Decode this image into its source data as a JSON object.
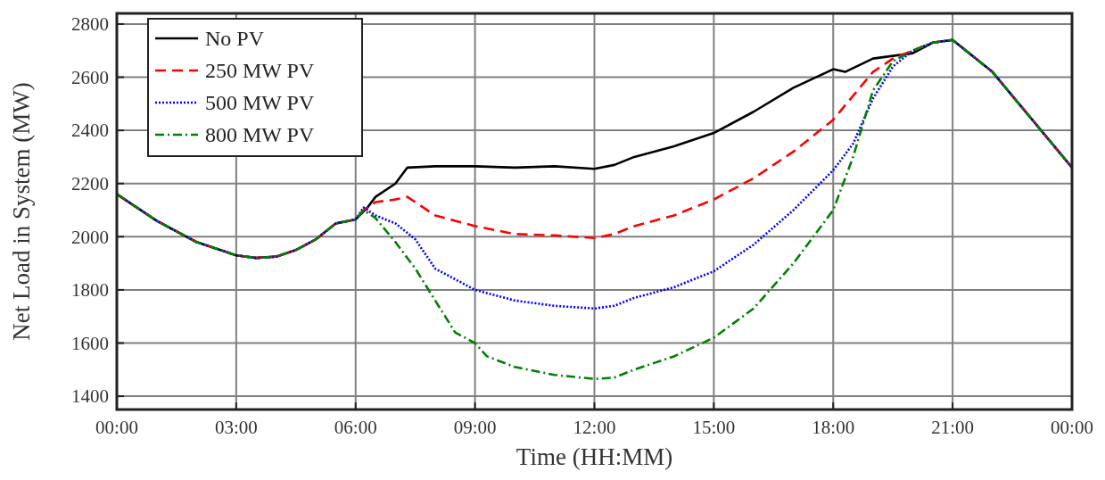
{
  "chart_data": {
    "type": "line",
    "xlabel": "Time (HH:MM)",
    "ylabel": "Net Load in System (MW)",
    "xlim": [
      0,
      24
    ],
    "ylim": [
      1350,
      2840
    ],
    "xticks": [
      {
        "value": 0,
        "label": "00:00"
      },
      {
        "value": 3,
        "label": "03:00"
      },
      {
        "value": 6,
        "label": "06:00"
      },
      {
        "value": 9,
        "label": "09:00"
      },
      {
        "value": 12,
        "label": "12:00"
      },
      {
        "value": 15,
        "label": "15:00"
      },
      {
        "value": 18,
        "label": "18:00"
      },
      {
        "value": 21,
        "label": "21:00"
      },
      {
        "value": 24,
        "label": "00:00"
      }
    ],
    "yticks": [
      1400,
      1600,
      1800,
      2000,
      2200,
      2400,
      2600,
      2800
    ],
    "grid": true,
    "legend": "top left",
    "series": [
      {
        "name": "No PV",
        "color": "#000000",
        "line_style": "solid",
        "x": [
          0,
          1,
          2,
          3,
          3.5,
          4,
          4.5,
          5,
          5.5,
          6,
          6.3,
          6.5,
          7,
          7.3,
          8,
          9,
          10,
          11,
          12,
          12.5,
          13,
          14,
          15,
          16,
          17,
          18,
          18.3,
          19,
          20,
          20.5,
          21,
          22,
          23,
          24
        ],
        "values": [
          2160,
          2060,
          1980,
          1930,
          1920,
          1925,
          1950,
          1990,
          2050,
          2065,
          2110,
          2150,
          2200,
          2260,
          2265,
          2265,
          2260,
          2265,
          2255,
          2270,
          2300,
          2340,
          2390,
          2470,
          2560,
          2630,
          2620,
          2670,
          2690,
          2730,
          2740,
          2620,
          2440,
          2260
        ]
      },
      {
        "name": "250 MW PV",
        "color": "#ff0000",
        "line_style": "dashed",
        "x": [
          0,
          1,
          2,
          3,
          3.5,
          4,
          4.5,
          5,
          5.5,
          6,
          6.2,
          6.5,
          7,
          7.3,
          8,
          9,
          10,
          11,
          12,
          12.5,
          13,
          14,
          15,
          16,
          17,
          18,
          18.5,
          19,
          19.5,
          20,
          20.5,
          21,
          22,
          23,
          24
        ],
        "values": [
          2160,
          2060,
          1980,
          1930,
          1920,
          1925,
          1950,
          1990,
          2050,
          2065,
          2100,
          2130,
          2140,
          2150,
          2080,
          2040,
          2010,
          2005,
          1995,
          2010,
          2040,
          2080,
          2140,
          2220,
          2320,
          2440,
          2530,
          2620,
          2670,
          2700,
          2730,
          2740,
          2620,
          2440,
          2260
        ]
      },
      {
        "name": "500 MW PV",
        "color": "#0000ff",
        "line_style": "dotted",
        "x": [
          0,
          1,
          2,
          3,
          3.5,
          4,
          4.5,
          5,
          5.5,
          6,
          6.2,
          6.5,
          7,
          7.5,
          8,
          8.5,
          9,
          10,
          11,
          12,
          12.5,
          13,
          14,
          15,
          16,
          17,
          18,
          18.5,
          19,
          19.5,
          20,
          20.5,
          21,
          22,
          23,
          24
        ],
        "values": [
          2160,
          2060,
          1980,
          1930,
          1920,
          1925,
          1950,
          1990,
          2050,
          2065,
          2110,
          2080,
          2050,
          1990,
          1880,
          1840,
          1800,
          1760,
          1740,
          1730,
          1740,
          1770,
          1810,
          1870,
          1970,
          2100,
          2250,
          2350,
          2520,
          2640,
          2700,
          2730,
          2740,
          2620,
          2440,
          2260
        ]
      },
      {
        "name": "800 MW PV",
        "color": "#008000",
        "line_style": "dashdot",
        "x": [
          0,
          1,
          2,
          3,
          3.5,
          4,
          4.5,
          5,
          5.5,
          6,
          6.2,
          6.5,
          7,
          7.5,
          8,
          8.5,
          9,
          9.3,
          10,
          11,
          12,
          12.5,
          13,
          14,
          15,
          16,
          17,
          18,
          18.5,
          19,
          19.5,
          20,
          20.5,
          21,
          22,
          23,
          24
        ],
        "values": [
          2160,
          2060,
          1980,
          1930,
          1920,
          1925,
          1950,
          1990,
          2050,
          2065,
          2100,
          2070,
          1980,
          1880,
          1760,
          1640,
          1600,
          1550,
          1510,
          1480,
          1465,
          1470,
          1500,
          1550,
          1620,
          1730,
          1900,
          2100,
          2300,
          2550,
          2660,
          2700,
          2730,
          2740,
          2620,
          2440,
          2260
        ]
      }
    ]
  }
}
